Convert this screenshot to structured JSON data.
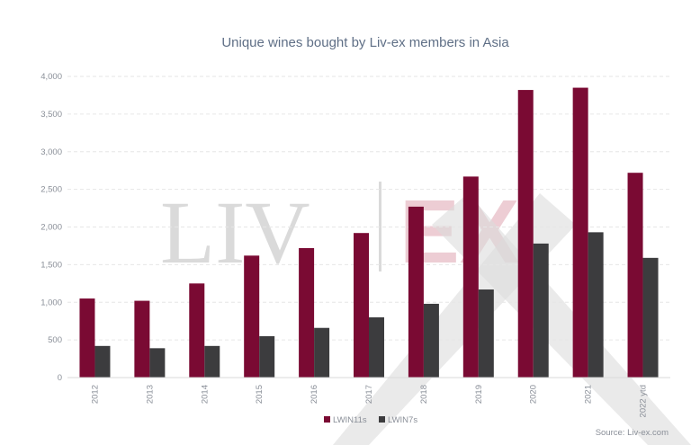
{
  "chart_data": {
    "type": "bar",
    "title": "Unique wines bought by Liv-ex members in Asia",
    "categories": [
      "2012",
      "2013",
      "2014",
      "2015",
      "2016",
      "2017",
      "2018",
      "2019",
      "2020",
      "2021",
      "2022 ytd"
    ],
    "series": [
      {
        "name": "LWIN11s",
        "color": "#7a0a33",
        "values": [
          1050,
          1020,
          1250,
          1620,
          1720,
          1920,
          2270,
          2670,
          3820,
          3850,
          2720
        ]
      },
      {
        "name": "LWIN7s",
        "color": "#3c3c3e",
        "values": [
          420,
          390,
          420,
          550,
          660,
          800,
          980,
          1170,
          1780,
          1930,
          1590
        ]
      }
    ],
    "ylim": [
      0,
      4000
    ],
    "yticks": [
      "0",
      "500",
      "1,000",
      "1,500",
      "2,000",
      "2,500",
      "3,000",
      "3,500",
      "4,000"
    ],
    "grid": true,
    "legend_position": "bottom-center",
    "source": "Source: Liv-ex.com",
    "watermark": "LIV | EX"
  }
}
